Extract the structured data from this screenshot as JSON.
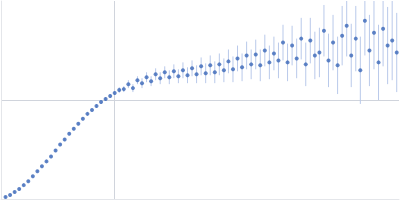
{
  "chart_data": {
    "type": "scatter",
    "color": "#3a66b8",
    "x": [
      0.004,
      0.008,
      0.012,
      0.016,
      0.02,
      0.024,
      0.028,
      0.032,
      0.036,
      0.04,
      0.044,
      0.048,
      0.052,
      0.056,
      0.06,
      0.064,
      0.068,
      0.072,
      0.076,
      0.08,
      0.084,
      0.088,
      0.092,
      0.096,
      0.1,
      0.104,
      0.108,
      0.112,
      0.116,
      0.12,
      0.124,
      0.128,
      0.132,
      0.136,
      0.14,
      0.144,
      0.148,
      0.152,
      0.156,
      0.16,
      0.164,
      0.168,
      0.172,
      0.176,
      0.18,
      0.184,
      0.188,
      0.192,
      0.196,
      0.2,
      0.204,
      0.208,
      0.212,
      0.216,
      0.22,
      0.224,
      0.228,
      0.232,
      0.236,
      0.24,
      0.244,
      0.248,
      0.252,
      0.256,
      0.26,
      0.264,
      0.268,
      0.272,
      0.276,
      0.28,
      0.284,
      0.288,
      0.292,
      0.296,
      0.3,
      0.304,
      0.308,
      0.312,
      0.316,
      0.32,
      0.324,
      0.328,
      0.332,
      0.336,
      0.34,
      0.344,
      0.348
    ],
    "values": [
      0.02,
      0.04,
      0.07,
      0.1,
      0.14,
      0.18,
      0.23,
      0.28,
      0.33,
      0.38,
      0.43,
      0.49,
      0.55,
      0.6,
      0.66,
      0.71,
      0.76,
      0.81,
      0.86,
      0.9,
      0.94,
      0.98,
      1.01,
      1.04,
      1.07,
      1.1,
      1.11,
      1.16,
      1.12,
      1.2,
      1.17,
      1.23,
      1.19,
      1.26,
      1.22,
      1.28,
      1.23,
      1.29,
      1.24,
      1.3,
      1.25,
      1.32,
      1.26,
      1.34,
      1.27,
      1.35,
      1.28,
      1.36,
      1.3,
      1.39,
      1.31,
      1.42,
      1.33,
      1.45,
      1.36,
      1.46,
      1.35,
      1.5,
      1.38,
      1.47,
      1.4,
      1.58,
      1.38,
      1.55,
      1.42,
      1.62,
      1.36,
      1.6,
      1.45,
      1.48,
      1.7,
      1.4,
      1.58,
      1.35,
      1.65,
      1.75,
      1.45,
      1.62,
      1.3,
      1.8,
      1.5,
      1.68,
      1.38,
      1.72,
      1.55,
      1.6,
      1.48
    ],
    "errors": [
      0.01,
      0.01,
      0.01,
      0.01,
      0.01,
      0.01,
      0.01,
      0.01,
      0.01,
      0.01,
      0.015,
      0.015,
      0.015,
      0.015,
      0.015,
      0.015,
      0.015,
      0.015,
      0.015,
      0.015,
      0.02,
      0.02,
      0.02,
      0.02,
      0.02,
      0.03,
      0.03,
      0.04,
      0.04,
      0.04,
      0.05,
      0.05,
      0.05,
      0.06,
      0.06,
      0.06,
      0.07,
      0.07,
      0.07,
      0.08,
      0.08,
      0.08,
      0.09,
      0.09,
      0.1,
      0.1,
      0.11,
      0.11,
      0.12,
      0.12,
      0.13,
      0.13,
      0.14,
      0.14,
      0.15,
      0.15,
      0.16,
      0.16,
      0.17,
      0.17,
      0.18,
      0.18,
      0.19,
      0.2,
      0.2,
      0.21,
      0.22,
      0.23,
      0.24,
      0.25,
      0.26,
      0.27,
      0.28,
      0.29,
      0.3,
      0.31,
      0.32,
      0.33,
      0.34,
      0.35,
      0.36,
      0.37,
      0.38,
      0.38,
      0.39,
      0.4,
      0.4
    ],
    "xlim": [
      0,
      0.35
    ],
    "ylim": [
      0,
      2
    ],
    "xticks": [
      0.1
    ],
    "yticks": [
      1
    ],
    "grid": true,
    "tick_labels": false
  }
}
